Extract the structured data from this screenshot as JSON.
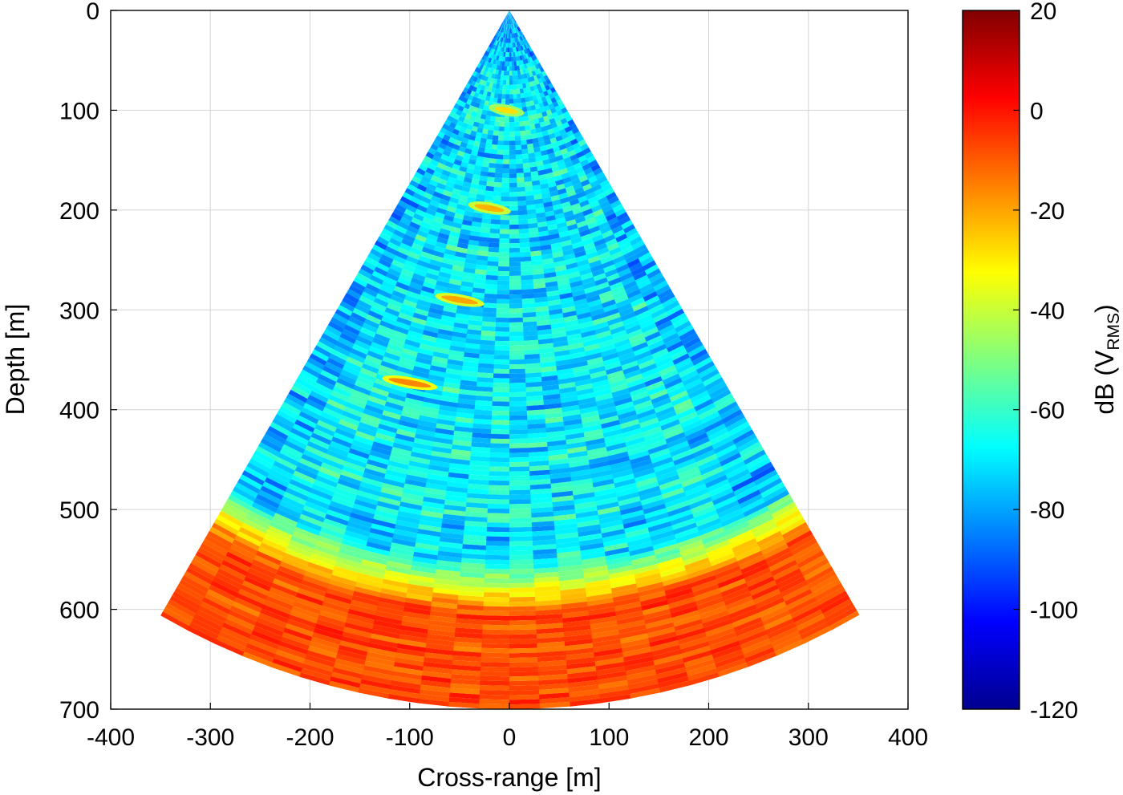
{
  "chart_data": {
    "type": "heatmap",
    "subtype": "polar-sector sonar image",
    "title": "",
    "xlabel": "Cross-range [m]",
    "ylabel": "Depth [m]",
    "xlim": [
      -400,
      400
    ],
    "ylim": [
      700,
      0
    ],
    "y_reversed": true,
    "x_ticks": [
      "-400",
      "-300",
      "-200",
      "-100",
      "0",
      "100",
      "200",
      "300",
      "400"
    ],
    "x_tick_values": [
      -400,
      -300,
      -200,
      -100,
      0,
      100,
      200,
      300,
      400
    ],
    "y_ticks": [
      "0",
      "100",
      "200",
      "300",
      "400",
      "500",
      "600",
      "700"
    ],
    "y_tick_values": [
      0,
      100,
      200,
      300,
      400,
      500,
      600,
      700
    ],
    "grid": true,
    "sector": {
      "apex": [
        0,
        0
      ],
      "max_range_m": 700,
      "half_angle_deg": 30,
      "edge_points": [
        [
          -350,
          606
        ],
        [
          350,
          606
        ]
      ]
    },
    "bottom_echo": {
      "start_range_m": 595,
      "level_db": -8
    },
    "background_level_db": -70,
    "point_targets": [
      {
        "x": -3,
        "depth": 100,
        "level_db": -28
      },
      {
        "x": -20,
        "depth": 198,
        "level_db": -22
      },
      {
        "x": -50,
        "depth": 290,
        "level_db": -20
      },
      {
        "x": -100,
        "depth": 373,
        "level_db": -16
      }
    ],
    "colorbar": {
      "label_main": "dB (V",
      "label_sub": "RMS",
      "label_end": ")",
      "colormap": "jet",
      "range": [
        -120,
        20
      ],
      "ticks": [
        "20",
        "0",
        "-20",
        "-40",
        "-60",
        "-80",
        "-100",
        "-120"
      ],
      "tick_values": [
        20,
        0,
        -20,
        -40,
        -60,
        -80,
        -100,
        -120
      ]
    }
  }
}
